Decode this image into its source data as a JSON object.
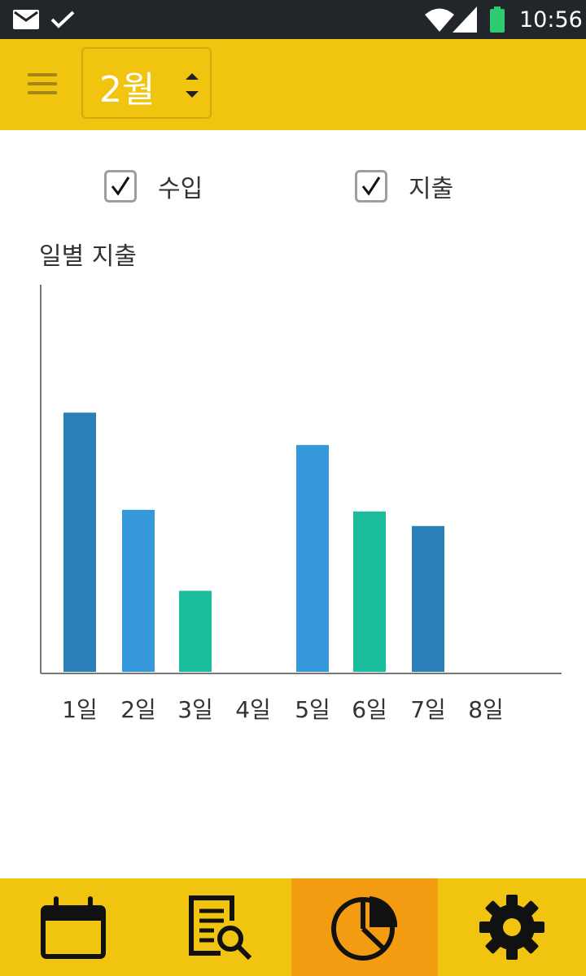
{
  "status_bar": {
    "time": "10:56",
    "icons": [
      "mail-icon",
      "check-icon",
      "wifi-icon",
      "signal-icon",
      "battery-icon"
    ],
    "battery_color": "#2ecc71"
  },
  "header": {
    "month": "2월",
    "background": "#f1c40f"
  },
  "filters": [
    {
      "label": "수입",
      "checked": true
    },
    {
      "label": "지출",
      "checked": true
    }
  ],
  "chart_title": "일별 지출",
  "chart_data": {
    "type": "bar",
    "title": "일별 지출",
    "xlabel": "",
    "ylabel": "",
    "categories": [
      "1일",
      "2일",
      "3일",
      "4일",
      "5일",
      "6일",
      "7일",
      "8일"
    ],
    "values": [
      320,
      200,
      100,
      0,
      280,
      198,
      180,
      0
    ],
    "colors": [
      "#2980b9",
      "#3498db",
      "#1abc9c",
      "#2980b9",
      "#3498db",
      "#1abc9c",
      "#2980b9",
      "#3498db"
    ],
    "ylim": [
      0,
      480
    ],
    "grid": false,
    "legend": "none"
  },
  "bottom_nav": [
    {
      "name": "calendar",
      "icon": "calendar-icon",
      "active": false
    },
    {
      "name": "search-list",
      "icon": "document-search-icon",
      "active": false
    },
    {
      "name": "statistics",
      "icon": "pie-chart-icon",
      "active": true
    },
    {
      "name": "settings",
      "icon": "gear-icon",
      "active": false
    }
  ]
}
